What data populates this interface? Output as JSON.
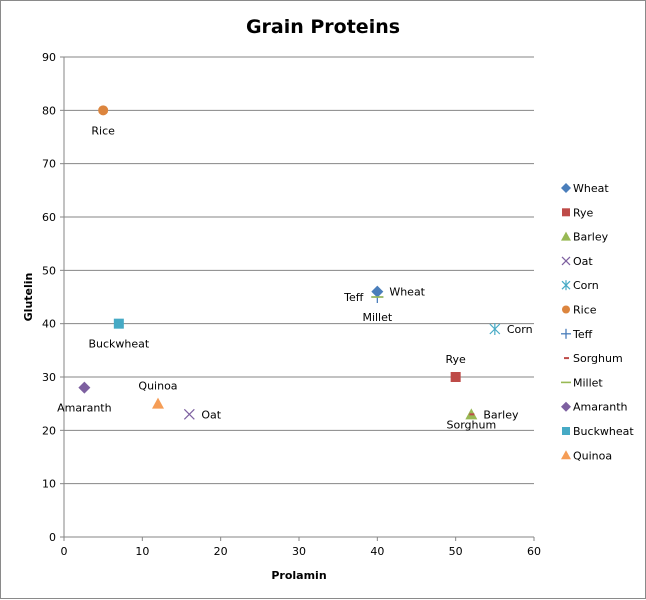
{
  "chart_data": {
    "type": "scatter",
    "title": "Grain Proteins",
    "xlabel": "Prolamin",
    "ylabel": "Glutelin",
    "xlim": [
      0,
      60
    ],
    "ylim": [
      0,
      90
    ],
    "xticks": [
      0,
      10,
      20,
      30,
      40,
      50,
      60
    ],
    "yticks": [
      0,
      10,
      20,
      30,
      40,
      50,
      60,
      70,
      80,
      90
    ],
    "grid": "horizontal",
    "legend_position": "right",
    "series": [
      {
        "name": "Wheat",
        "marker": "diamond",
        "color": "#4a7ebb",
        "x": 40,
        "y": 46,
        "label": "Wheat",
        "label_pos": "right"
      },
      {
        "name": "Rye",
        "marker": "square",
        "color": "#be4b48",
        "x": 50,
        "y": 30,
        "label": "Rye",
        "label_pos": "above"
      },
      {
        "name": "Barley",
        "marker": "triangle",
        "color": "#98b954",
        "x": 52,
        "y": 23,
        "label": "Barley",
        "label_pos": "right"
      },
      {
        "name": "Oat",
        "marker": "x",
        "color": "#7d60a0",
        "x": 16,
        "y": 23,
        "label": "Oat",
        "label_pos": "right"
      },
      {
        "name": "Corn",
        "marker": "star",
        "color": "#46aac5",
        "x": 55,
        "y": 39,
        "label": "Corn",
        "label_pos": "right"
      },
      {
        "name": "Rice",
        "marker": "circle",
        "color": "#dc853e",
        "x": 5,
        "y": 80,
        "label": "Rice",
        "label_pos": "below"
      },
      {
        "name": "Teff",
        "marker": "plus",
        "color": "#4a7ebb",
        "x": 40,
        "y": 45,
        "label": "Teff",
        "label_pos": "left"
      },
      {
        "name": "Sorghum",
        "marker": "dash",
        "color": "#be4b48",
        "x": 52,
        "y": 23,
        "label": "Sorghum",
        "label_pos": "below"
      },
      {
        "name": "Millet",
        "marker": "hline",
        "color": "#98b954",
        "x": 40,
        "y": 45,
        "label": "Millet",
        "label_pos": "below"
      },
      {
        "name": "Amaranth",
        "marker": "diamond",
        "color": "#7d60a0",
        "x": 2.6,
        "y": 28,
        "label": "Amaranth",
        "label_pos": "below"
      },
      {
        "name": "Buckwheat",
        "marker": "square",
        "color": "#46aac5",
        "x": 7,
        "y": 40,
        "label": "Buckwheat",
        "label_pos": "below"
      },
      {
        "name": "Quinoa",
        "marker": "triangle",
        "color": "#f59d56",
        "x": 12,
        "y": 25,
        "label": "Quinoa",
        "label_pos": "above"
      }
    ]
  }
}
